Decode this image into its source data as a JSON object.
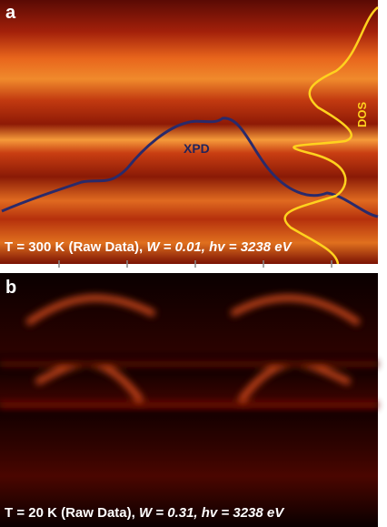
{
  "panels": [
    {
      "label": "a",
      "curves": [
        "XPD",
        "DOS"
      ],
      "caption": {
        "plain": "T = 300 K (Raw Data), ",
        "italic": "W = 0.01, hv = 3238 eV"
      }
    },
    {
      "label": "b",
      "caption": {
        "plain": "T = 20 K (Raw Data), ",
        "italic": "W = 0.31, hv = 3238 eV"
      }
    }
  ]
}
